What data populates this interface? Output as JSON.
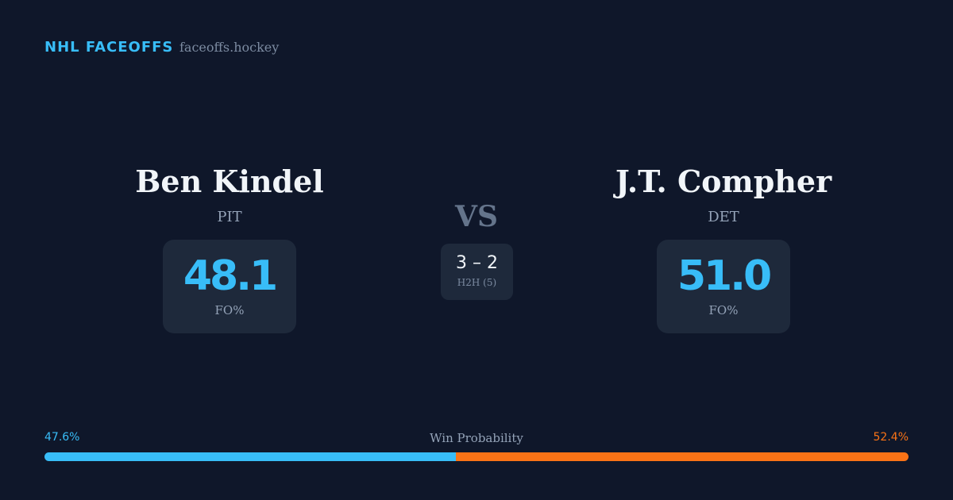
{
  "header": {
    "brand": "NHL FACEOFFS",
    "site": "faceoffs.hockey"
  },
  "players": [
    {
      "name": "Ben Kindel",
      "team": "PIT",
      "stat": "48.1",
      "stat_label": "FO%"
    },
    {
      "name": "J.T. Compher",
      "team": "DET",
      "stat": "51.0",
      "stat_label": "FO%"
    }
  ],
  "versus": "VS",
  "h2h": {
    "score": "3 – 2",
    "label": "H2H (5)"
  },
  "win_probability": {
    "title": "Win Probability",
    "sides": [
      {
        "value": 47.6,
        "label": "47.6%",
        "color": "#38bdf8"
      },
      {
        "value": 52.4,
        "label": "52.4%",
        "color": "#f97316"
      }
    ]
  }
}
